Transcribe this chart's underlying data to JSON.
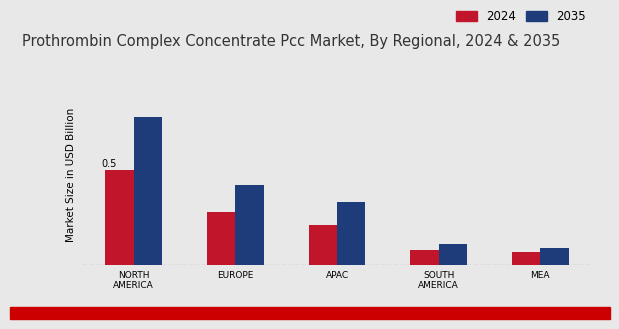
{
  "title": "Prothrombin Complex Concentrate Pcc Market, By Regional, 2024 & 2035",
  "categories": [
    "NORTH\nAMERICA",
    "EUROPE",
    "APAC",
    "SOUTH\nAMERICA",
    "MEA"
  ],
  "values_2024": [
    0.5,
    0.28,
    0.21,
    0.08,
    0.07
  ],
  "values_2035": [
    0.78,
    0.42,
    0.33,
    0.11,
    0.09
  ],
  "color_2024": "#c0152a",
  "color_2035": "#1f3c7a",
  "ylabel": "Market Size in USD Billion",
  "legend_2024": "2024",
  "legend_2035": "2035",
  "annotation_val": "0.5",
  "background_color": "#e8e8e8",
  "bar_width": 0.28,
  "ylim": [
    0,
    0.95
  ],
  "title_fontsize": 10.5,
  "axis_label_fontsize": 7.5,
  "tick_fontsize": 6.5,
  "legend_fontsize": 8.5,
  "bottom_bar_color": "#cc0000"
}
